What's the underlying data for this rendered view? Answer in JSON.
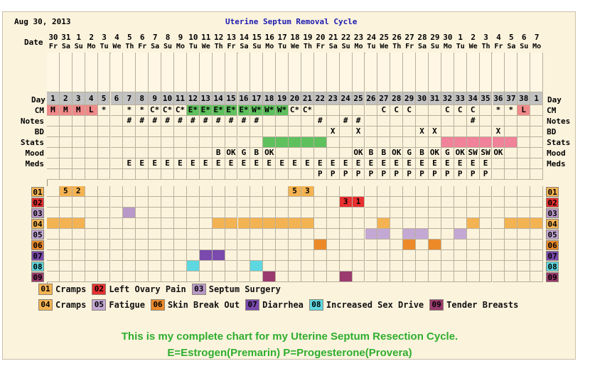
{
  "header": {
    "date": "Aug 30, 2013",
    "title": "Uterine Septum Removal Cycle"
  },
  "labels": {
    "date": "Date",
    "day": "Day"
  },
  "dates": [
    {
      "n": "30",
      "d": "Fr"
    },
    {
      "n": "31",
      "d": "Sa"
    },
    {
      "n": "1",
      "d": "Su"
    },
    {
      "n": "2",
      "d": "Mo"
    },
    {
      "n": "3",
      "d": "Tu"
    },
    {
      "n": "4",
      "d": "We"
    },
    {
      "n": "5",
      "d": "Th"
    },
    {
      "n": "6",
      "d": "Fr"
    },
    {
      "n": "7",
      "d": "Sa"
    },
    {
      "n": "8",
      "d": "Su"
    },
    {
      "n": "9",
      "d": "Mo"
    },
    {
      "n": "10",
      "d": "Tu"
    },
    {
      "n": "11",
      "d": "We"
    },
    {
      "n": "12",
      "d": "Th"
    },
    {
      "n": "13",
      "d": "Fr"
    },
    {
      "n": "14",
      "d": "Sa"
    },
    {
      "n": "15",
      "d": "Su"
    },
    {
      "n": "16",
      "d": "Mo"
    },
    {
      "n": "17",
      "d": "Tu"
    },
    {
      "n": "18",
      "d": "We"
    },
    {
      "n": "19",
      "d": "Th"
    },
    {
      "n": "20",
      "d": "Fr"
    },
    {
      "n": "21",
      "d": "Sa"
    },
    {
      "n": "22",
      "d": "Su"
    },
    {
      "n": "23",
      "d": "Mo"
    },
    {
      "n": "24",
      "d": "Tu"
    },
    {
      "n": "25",
      "d": "We"
    },
    {
      "n": "26",
      "d": "Th"
    },
    {
      "n": "27",
      "d": "Fr"
    },
    {
      "n": "28",
      "d": "Sa"
    },
    {
      "n": "29",
      "d": "Su"
    },
    {
      "n": "30",
      "d": "Mo"
    },
    {
      "n": "1",
      "d": "Tu"
    },
    {
      "n": "2",
      "d": "We"
    },
    {
      "n": "3",
      "d": "Th"
    },
    {
      "n": "4",
      "d": "Fr"
    },
    {
      "n": "5",
      "d": "Sa"
    },
    {
      "n": "6",
      "d": "Su"
    },
    {
      "n": "7",
      "d": "Mo"
    }
  ],
  "cycle_days": [
    "1",
    "2",
    "3",
    "4",
    "5",
    "6",
    "7",
    "8",
    "9",
    "10",
    "11",
    "12",
    "13",
    "14",
    "15",
    "16",
    "17",
    "18",
    "19",
    "20",
    "21",
    "22",
    "23",
    "24",
    "25",
    "26",
    "27",
    "28",
    "29",
    "30",
    "31",
    "32",
    "33",
    "34",
    "35",
    "36",
    "37",
    "38",
    "1"
  ],
  "rows": [
    {
      "label": "CM",
      "cells": [
        {
          "t": "M",
          "c": "#f08a8a"
        },
        {
          "t": "M",
          "c": "#f08a8a"
        },
        {
          "t": "M",
          "c": "#f08a8a"
        },
        {
          "t": "L",
          "c": "#f08a8a"
        },
        {
          "t": "*"
        },
        {},
        {
          "t": "*"
        },
        {
          "t": "*"
        },
        {
          "t": "C*"
        },
        {
          "t": "C*"
        },
        {
          "t": "C*"
        },
        {
          "t": "E*",
          "c": "#5ec15e"
        },
        {
          "t": "E*",
          "c": "#5ec15e"
        },
        {
          "t": "E*",
          "c": "#5ec15e"
        },
        {
          "t": "E*",
          "c": "#5ec15e"
        },
        {
          "t": "E*",
          "c": "#5ec15e"
        },
        {
          "t": "W*",
          "c": "#5ec15e"
        },
        {
          "t": "W*",
          "c": "#5ec15e"
        },
        {
          "t": "W*",
          "c": "#5ec15e"
        },
        {
          "t": "C*"
        },
        {
          "t": "C*"
        },
        {},
        {},
        {},
        {},
        {},
        {
          "t": "C"
        },
        {
          "t": "C"
        },
        {
          "t": "C"
        },
        {},
        {},
        {
          "t": "C"
        },
        {
          "t": "C"
        },
        {
          "t": "C"
        },
        {},
        {
          "t": "*"
        },
        {
          "t": "*"
        },
        {
          "t": "L",
          "c": "#f08a8a"
        },
        {}
      ]
    },
    {
      "label": "Notes",
      "cells": [
        {},
        {},
        {},
        {},
        {},
        {},
        {
          "t": "#"
        },
        {
          "t": "#"
        },
        {
          "t": "#"
        },
        {
          "t": "#"
        },
        {
          "t": "#"
        },
        {
          "t": "#"
        },
        {
          "t": "#"
        },
        {
          "t": "#"
        },
        {
          "t": "#"
        },
        {
          "t": "#"
        },
        {
          "t": "#"
        },
        {},
        {},
        {},
        {},
        {
          "t": "#"
        },
        {},
        {
          "t": "#"
        },
        {
          "t": "#"
        },
        {},
        {},
        {},
        {},
        {},
        {},
        {},
        {},
        {
          "t": "#"
        },
        {},
        {},
        {},
        {},
        {}
      ]
    },
    {
      "label": "BD",
      "cells": [
        {},
        {},
        {},
        {},
        {},
        {},
        {},
        {},
        {},
        {},
        {},
        {},
        {},
        {},
        {},
        {},
        {},
        {},
        {},
        {},
        {},
        {},
        {
          "t": "X"
        },
        {},
        {
          "t": "X"
        },
        {},
        {},
        {},
        {},
        {
          "t": "X"
        },
        {
          "t": "X"
        },
        {},
        {},
        {},
        {},
        {
          "t": "X"
        },
        {},
        {},
        {}
      ]
    },
    {
      "label": "Stats",
      "cells": [
        {},
        {},
        {},
        {},
        {},
        {},
        {},
        {},
        {},
        {},
        {},
        {},
        {},
        {},
        {},
        {},
        {},
        {
          "c": "#5ec15e"
        },
        {
          "c": "#5ec15e"
        },
        {
          "c": "#5ec15e"
        },
        {
          "c": "#5ec15e"
        },
        {
          "c": "#5ec15e"
        },
        {},
        {},
        {},
        {},
        {},
        {},
        {},
        {},
        {},
        {
          "c": "#f0829a"
        },
        {
          "c": "#f0829a"
        },
        {
          "c": "#f0829a"
        },
        {
          "c": "#f0829a"
        },
        {
          "c": "#f0829a"
        },
        {
          "c": "#f0829a"
        },
        {},
        {}
      ]
    },
    {
      "label": "Mood",
      "cells": [
        {},
        {},
        {},
        {},
        {},
        {},
        {},
        {},
        {},
        {},
        {},
        {},
        {},
        {
          "t": "B"
        },
        {
          "t": "OK"
        },
        {
          "t": "G"
        },
        {
          "t": "B"
        },
        {
          "t": "OK"
        },
        {},
        {},
        {},
        {},
        {},
        {},
        {
          "t": "OK"
        },
        {
          "t": "B"
        },
        {
          "t": "B"
        },
        {
          "t": "OK"
        },
        {
          "t": "G"
        },
        {
          "t": "B"
        },
        {
          "t": "OK"
        },
        {
          "t": "G"
        },
        {
          "t": "OK"
        },
        {
          "t": "SW"
        },
        {
          "t": "SW"
        },
        {
          "t": "OK"
        },
        {},
        {},
        {}
      ]
    },
    {
      "label": "Meds",
      "cells": [
        {},
        {},
        {},
        {},
        {},
        {},
        {
          "t": "E"
        },
        {
          "t": "E"
        },
        {
          "t": "E"
        },
        {
          "t": "E"
        },
        {
          "t": "E"
        },
        {
          "t": "E"
        },
        {
          "t": "E"
        },
        {
          "t": "E"
        },
        {
          "t": "E"
        },
        {
          "t": "E"
        },
        {
          "t": "E"
        },
        {
          "t": "E"
        },
        {
          "t": "E"
        },
        {
          "t": "E"
        },
        {
          "t": "E"
        },
        {
          "t": "E"
        },
        {
          "t": "E"
        },
        {
          "t": "E"
        },
        {
          "t": "E"
        },
        {
          "t": "E"
        },
        {
          "t": "E"
        },
        {
          "t": "E"
        },
        {
          "t": "E"
        },
        {
          "t": "E"
        },
        {
          "t": "E"
        },
        {
          "t": "E"
        },
        {
          "t": "E"
        },
        {
          "t": "E"
        },
        {
          "t": "E"
        },
        {},
        {},
        {},
        {}
      ]
    },
    {
      "label": "",
      "cells": [
        {},
        {},
        {},
        {},
        {},
        {},
        {},
        {},
        {},
        {},
        {},
        {},
        {},
        {},
        {},
        {},
        {},
        {},
        {},
        {},
        {},
        {
          "t": "P"
        },
        {
          "t": "P"
        },
        {
          "t": "P"
        },
        {
          "t": "P"
        },
        {
          "t": "P"
        },
        {
          "t": "P"
        },
        {
          "t": "P"
        },
        {
          "t": "P"
        },
        {
          "t": "P"
        },
        {
          "t": "P"
        },
        {
          "t": "P"
        },
        {
          "t": "P"
        },
        {
          "t": "P"
        },
        {
          "t": "P"
        },
        {},
        {},
        {},
        {}
      ]
    }
  ],
  "symptoms": [
    {
      "code": "01",
      "color": "#f4b352",
      "label": "Cramps",
      "cells": [
        {},
        {
          "t": "5",
          "c": "#f4b352"
        },
        {
          "t": "2",
          "c": "#f4b352"
        },
        {},
        {},
        {},
        {},
        {},
        {},
        {},
        {},
        {},
        {},
        {},
        {},
        {},
        {},
        {},
        {},
        {
          "t": "5",
          "c": "#f4b352"
        },
        {
          "t": "3",
          "c": "#f4b352"
        },
        {},
        {},
        {},
        {},
        {},
        {},
        {},
        {},
        {},
        {},
        {},
        {},
        {},
        {},
        {},
        {},
        {},
        {}
      ]
    },
    {
      "code": "02",
      "color": "#e83030",
      "label": "Left Ovary Pain",
      "cells": [
        {},
        {},
        {},
        {},
        {},
        {},
        {},
        {},
        {},
        {},
        {},
        {},
        {},
        {},
        {},
        {},
        {},
        {},
        {},
        {},
        {},
        {},
        {},
        {
          "t": "3",
          "c": "#e83030"
        },
        {
          "t": "1",
          "c": "#e83030"
        },
        {},
        {},
        {},
        {},
        {},
        {},
        {},
        {},
        {},
        {},
        {},
        {},
        {},
        {}
      ]
    },
    {
      "code": "03",
      "color": "#b898c8",
      "label": "Septum Surgery",
      "cells": [
        {},
        {},
        {},
        {},
        {},
        {},
        {
          "c": "#b898c8"
        },
        {},
        {},
        {},
        {},
        {},
        {},
        {},
        {},
        {},
        {},
        {},
        {},
        {},
        {},
        {},
        {},
        {},
        {},
        {},
        {},
        {},
        {},
        {},
        {},
        {},
        {},
        {},
        {},
        {},
        {},
        {},
        {}
      ]
    },
    {
      "code": "04",
      "color": "#f4b352",
      "label": "Cramps",
      "cells": [
        {
          "c": "#f4b352"
        },
        {
          "c": "#f4b352"
        },
        {
          "c": "#f4b352"
        },
        {},
        {},
        {},
        {},
        {},
        {},
        {},
        {},
        {},
        {},
        {
          "c": "#f4b352"
        },
        {
          "c": "#f4b352"
        },
        {
          "c": "#f4b352"
        },
        {
          "c": "#f4b352"
        },
        {
          "c": "#f4b352"
        },
        {
          "c": "#f4b352"
        },
        {
          "c": "#f4b352"
        },
        {
          "c": "#f4b352"
        },
        {},
        {},
        {},
        {},
        {},
        {
          "c": "#f4b352"
        },
        {},
        {},
        {},
        {},
        {},
        {},
        {
          "c": "#f4b352"
        },
        {},
        {},
        {
          "c": "#f4b352"
        },
        {
          "c": "#f4b352"
        },
        {
          "c": "#f4b352"
        }
      ]
    },
    {
      "code": "05",
      "color": "#c4a8d4",
      "label": "Fatigue",
      "cells": [
        {},
        {},
        {},
        {},
        {},
        {},
        {},
        {},
        {},
        {},
        {},
        {},
        {},
        {},
        {},
        {},
        {},
        {},
        {},
        {},
        {},
        {},
        {},
        {},
        {},
        {
          "c": "#c4a8d4"
        },
        {
          "c": "#c4a8d4"
        },
        {},
        {
          "c": "#c4a8d4"
        },
        {
          "c": "#c4a8d4"
        },
        {},
        {},
        {
          "c": "#c4a8d4"
        },
        {},
        {},
        {},
        {},
        {},
        {}
      ]
    },
    {
      "code": "06",
      "color": "#ec8a2a",
      "label": "Skin Break Out",
      "cells": [
        {},
        {},
        {},
        {},
        {},
        {},
        {},
        {},
        {},
        {},
        {},
        {},
        {},
        {},
        {},
        {},
        {},
        {},
        {},
        {},
        {},
        {
          "c": "#ec8a2a"
        },
        {},
        {},
        {},
        {},
        {},
        {},
        {
          "c": "#ec8a2a"
        },
        {},
        {
          "c": "#ec8a2a"
        },
        {},
        {},
        {},
        {},
        {},
        {},
        {},
        {}
      ]
    },
    {
      "code": "07",
      "color": "#7a4aae",
      "label": "Diarrhea",
      "cells": [
        {},
        {},
        {},
        {},
        {},
        {},
        {},
        {},
        {},
        {},
        {},
        {},
        {
          "c": "#7a4aae"
        },
        {
          "c": "#7a4aae"
        },
        {},
        {},
        {},
        {},
        {},
        {},
        {},
        {},
        {},
        {},
        {},
        {},
        {},
        {},
        {},
        {},
        {},
        {},
        {},
        {},
        {},
        {},
        {},
        {},
        {}
      ]
    },
    {
      "code": "08",
      "color": "#5ed8e0",
      "label": "Increased Sex Drive",
      "cells": [
        {},
        {},
        {},
        {},
        {},
        {},
        {},
        {},
        {},
        {},
        {},
        {
          "c": "#5ed8e0"
        },
        {},
        {},
        {},
        {},
        {
          "c": "#5ed8e0"
        },
        {},
        {},
        {},
        {},
        {},
        {},
        {},
        {},
        {},
        {},
        {},
        {},
        {},
        {},
        {},
        {},
        {},
        {},
        {},
        {},
        {},
        {}
      ]
    },
    {
      "code": "09",
      "color": "#9a3a6e",
      "label": "Tender Breasts",
      "cells": [
        {},
        {},
        {},
        {},
        {},
        {},
        {},
        {},
        {},
        {},
        {},
        {},
        {},
        {},
        {},
        {},
        {},
        {
          "c": "#9a3a6e"
        },
        {},
        {},
        {},
        {},
        {},
        {
          "c": "#9a3a6e"
        },
        {},
        {},
        {},
        {},
        {},
        {},
        {},
        {},
        {},
        {},
        {},
        {},
        {},
        {},
        {}
      ]
    }
  ],
  "legend": [
    {
      "code": "01",
      "color": "#f4b352",
      "label": "Cramps"
    },
    {
      "code": "02",
      "color": "#e83030",
      "label": "Left Ovary Pain"
    },
    {
      "code": "03",
      "color": "#b898c8",
      "label": "Septum Surgery"
    },
    {
      "code": "04",
      "color": "#f4b352",
      "label": "Cramps"
    },
    {
      "code": "05",
      "color": "#c4a8d4",
      "label": "Fatigue"
    },
    {
      "code": "06",
      "color": "#ec8a2a",
      "label": "Skin Break Out"
    },
    {
      "code": "07",
      "color": "#7a4aae",
      "label": "Diarrhea"
    },
    {
      "code": "08",
      "color": "#5ed8e0",
      "label": "Increased Sex Drive"
    },
    {
      "code": "09",
      "color": "#9a3a6e",
      "label": "Tender Breasts"
    }
  ],
  "notes": {
    "line1": "This is my complete chart for my Uterine Septum Resection Cycle.",
    "line2": "E=Estrogen(Premarin)   P=Progesterone(Provera)"
  },
  "colors": {
    "grid_bg": "#fcf3dd",
    "day_row": "#c2c2c2",
    "title": "#1b1bb0",
    "note": "#2eae2e",
    "temp_area": "#fff7e4"
  }
}
